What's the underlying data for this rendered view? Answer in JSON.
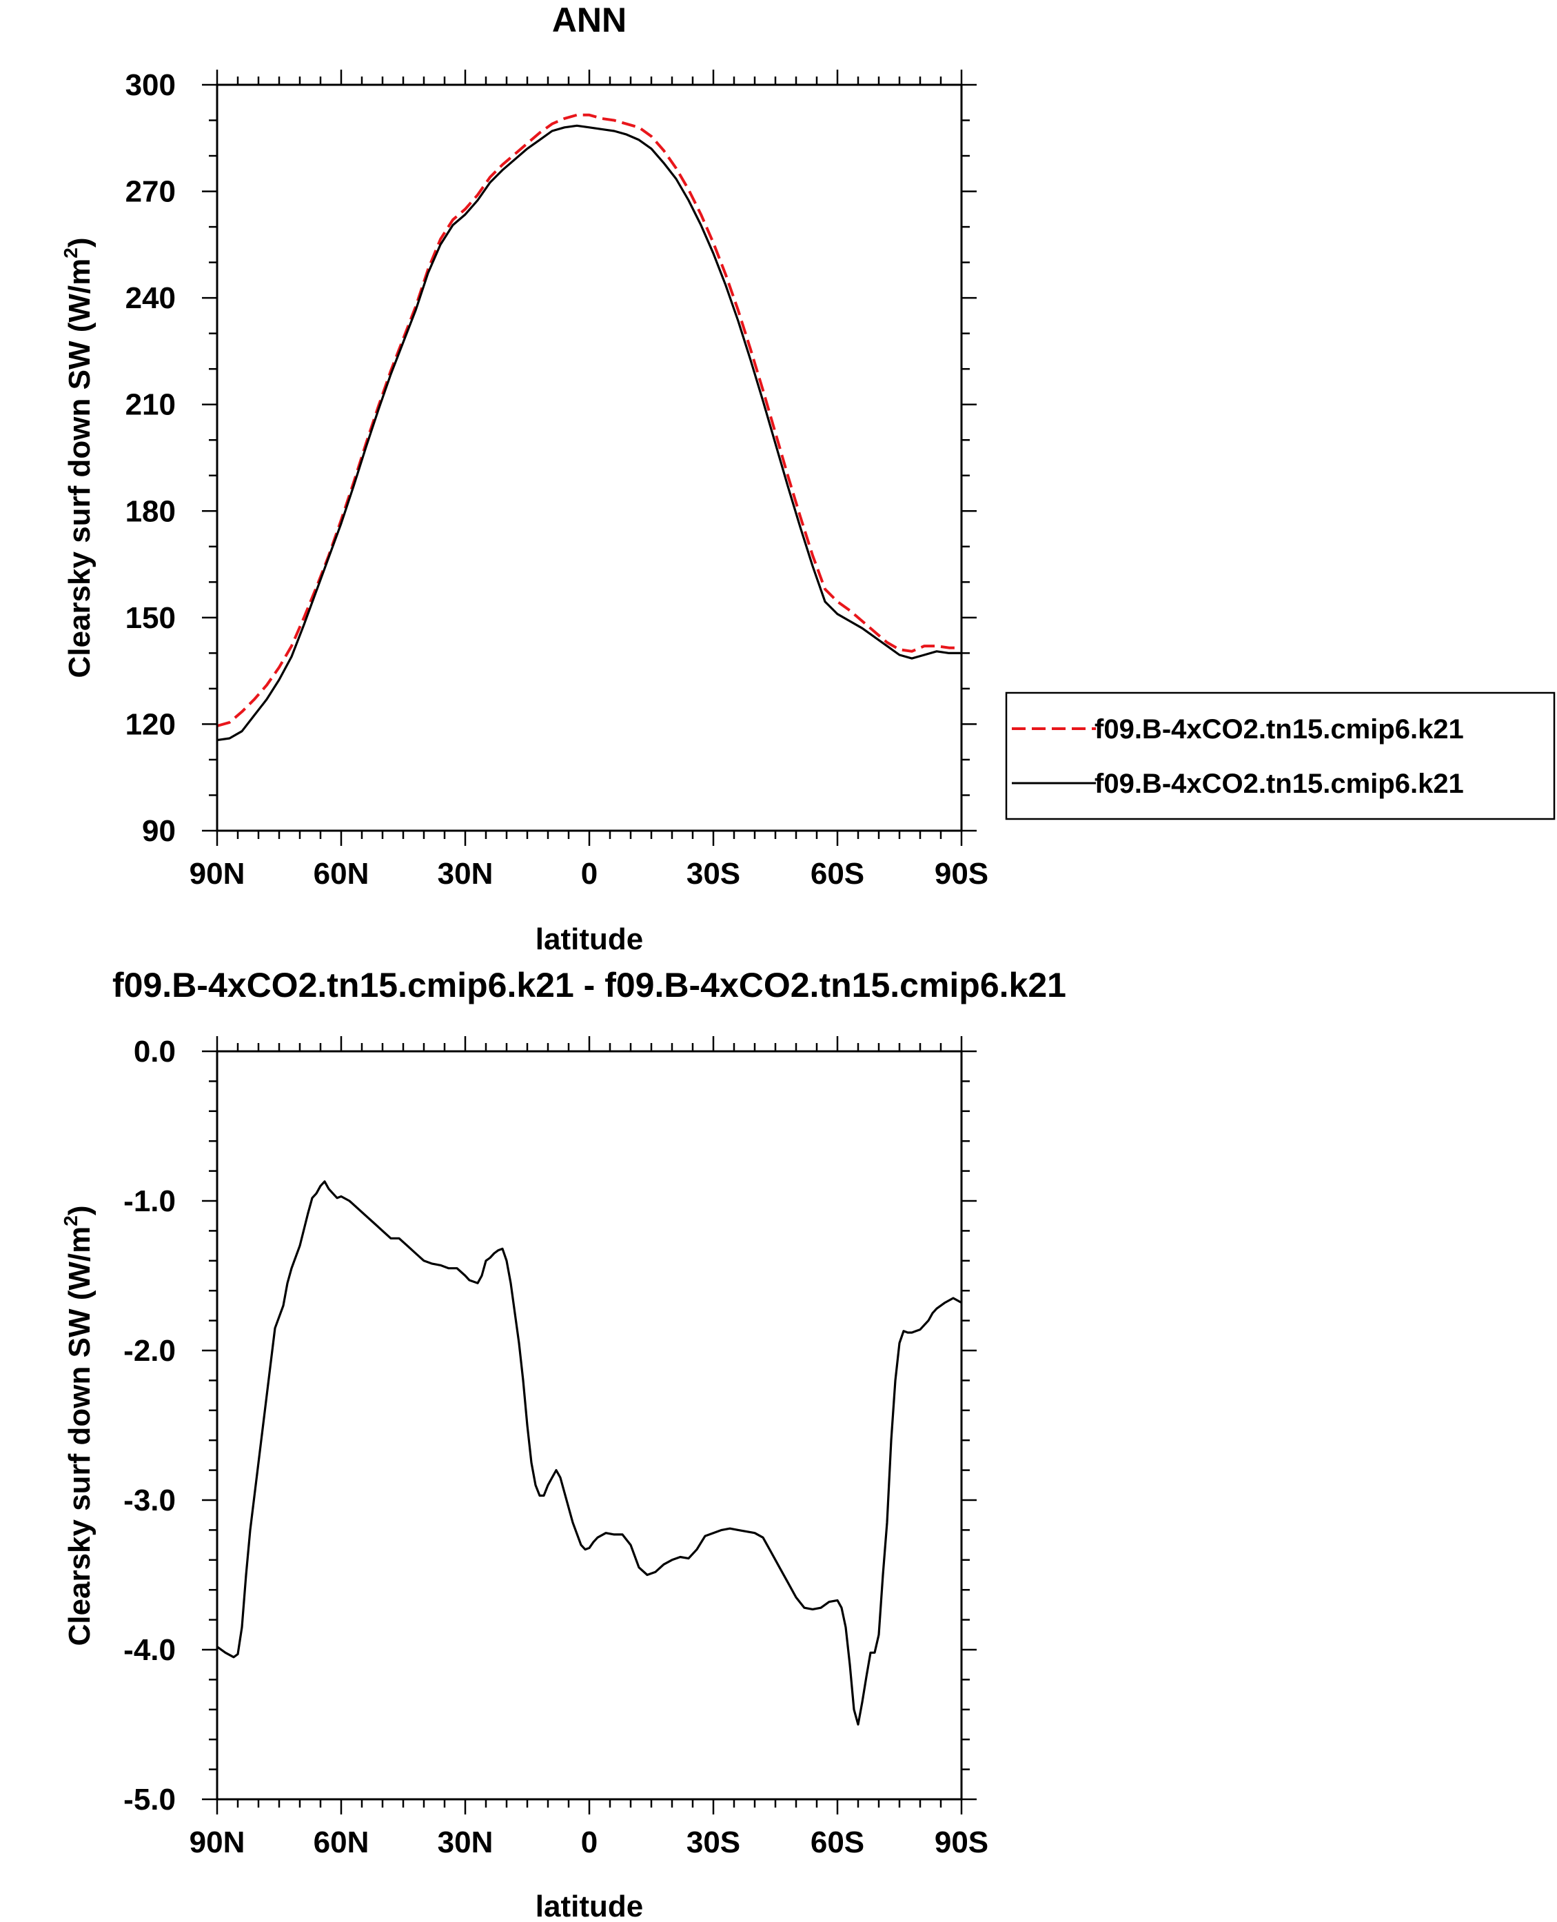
{
  "chart_data": [
    {
      "type": "line",
      "title": "ANN",
      "xlabel": "latitude",
      "ylabel": "Clearsky surf down SW (W/m",
      "ylabel_sup": "2",
      "ylabel_close": ")",
      "xlim": [
        90,
        -90
      ],
      "ylim": [
        90,
        300
      ],
      "x_ticks": [
        90,
        60,
        30,
        0,
        -30,
        -60,
        -90
      ],
      "x_tick_labels": [
        "90N",
        "60N",
        "30N",
        "0",
        "30S",
        "60S",
        "90S"
      ],
      "y_ticks": [
        90,
        120,
        150,
        180,
        210,
        240,
        270,
        300
      ],
      "y_tick_labels": [
        "90",
        "120",
        "150",
        "180",
        "210",
        "240",
        "270",
        "300"
      ],
      "grid": false,
      "legend_position": "right",
      "series": [
        {
          "name": "f09.B-4xCO2.tn15.cmip6.k21",
          "color": "#e8161b",
          "dash": "dashed",
          "x": [
            90,
            87,
            84,
            81,
            78,
            75,
            72,
            69,
            66,
            63,
            60,
            57,
            54,
            51,
            48,
            45,
            42,
            39,
            36,
            33,
            30,
            27,
            24,
            21,
            18,
            15,
            12,
            9,
            6,
            3,
            0,
            -3,
            -6,
            -9,
            -12,
            -15,
            -18,
            -21,
            -24,
            -27,
            -30,
            -33,
            -36,
            -39,
            -42,
            -45,
            -48,
            -51,
            -54,
            -57,
            -60,
            -63,
            -66,
            -69,
            -72,
            -75,
            -78,
            -81,
            -84,
            -87,
            -90
          ],
          "y": [
            119.5,
            120.5,
            123.5,
            127,
            131,
            136,
            142,
            150,
            158.5,
            167.5,
            177.5,
            188,
            199,
            209.5,
            219.5,
            228.5,
            237.5,
            248,
            256.5,
            262,
            265,
            269,
            274,
            277.5,
            280.5,
            283.5,
            286.5,
            289,
            290.5,
            291.5,
            291.5,
            290.5,
            290,
            289,
            288,
            285.5,
            281.5,
            276.5,
            270.5,
            263.5,
            255.5,
            246.5,
            236.5,
            225.5,
            214,
            202,
            190,
            178.5,
            167.5,
            158,
            154.5,
            152,
            149,
            146,
            143,
            141,
            140.5,
            142,
            142,
            141.5,
            141.5
          ]
        },
        {
          "name": "f09.B-4xCO2.tn15.cmip6.k21",
          "color": "#000000",
          "dash": "solid",
          "x": [
            90,
            87,
            84,
            81,
            78,
            75,
            72,
            69,
            66,
            63,
            60,
            57,
            54,
            51,
            48,
            45,
            42,
            39,
            36,
            33,
            30,
            27,
            24,
            21,
            18,
            15,
            12,
            9,
            6,
            3,
            0,
            -3,
            -6,
            -9,
            -12,
            -15,
            -18,
            -21,
            -24,
            -27,
            -30,
            -33,
            -36,
            -39,
            -42,
            -45,
            -48,
            -51,
            -54,
            -57,
            -60,
            -63,
            -66,
            -69,
            -72,
            -75,
            -78,
            -81,
            -84,
            -87,
            -90
          ],
          "y": [
            115.5,
            116,
            118,
            122.5,
            127,
            132.5,
            139,
            148,
            157.5,
            167,
            176.5,
            187,
            198,
            208.5,
            218.5,
            227.5,
            236.5,
            247,
            255,
            260.5,
            263.5,
            267.5,
            272.5,
            276,
            279,
            282,
            284.5,
            287,
            288,
            288.5,
            288,
            287.5,
            287,
            286,
            284.5,
            282,
            278,
            273.5,
            267.5,
            260.5,
            252.5,
            243.5,
            233.5,
            222.5,
            211,
            199,
            187,
            175.5,
            164.5,
            154.5,
            151,
            149,
            147,
            144.5,
            142,
            139.5,
            138.5,
            139.5,
            140.5,
            140,
            140
          ]
        }
      ]
    },
    {
      "type": "line",
      "title": "f09.B-4xCO2.tn15.cmip6.k21 - f09.B-4xCO2.tn15.cmip6.k21",
      "xlabel": "latitude",
      "ylabel": "Clearsky surf down SW (W/m",
      "ylabel_sup": "2",
      "ylabel_close": ")",
      "xlim": [
        90,
        -90
      ],
      "ylim": [
        -5,
        0
      ],
      "x_ticks": [
        90,
        60,
        30,
        0,
        -30,
        -60,
        -90
      ],
      "x_tick_labels": [
        "90N",
        "60N",
        "30N",
        "0",
        "30S",
        "60S",
        "90S"
      ],
      "y_ticks": [
        -5,
        -4,
        -3,
        -2,
        -1,
        0
      ],
      "y_tick_labels": [
        "-5.0",
        "-4.0",
        "-3.0",
        "-2.0",
        "-1.0",
        "0.0"
      ],
      "grid": false,
      "series": [
        {
          "color": "#000000",
          "dash": "solid",
          "x": [
            90,
            88,
            86,
            85,
            84,
            83,
            82,
            80,
            78,
            76,
            74,
            73,
            72,
            70,
            68,
            67,
            66,
            65,
            64,
            63,
            62,
            61,
            60,
            58,
            56,
            54,
            52,
            50,
            48,
            46,
            44,
            42,
            40,
            38,
            36,
            34,
            32,
            30,
            29,
            27,
            26,
            25,
            24,
            23,
            22,
            21,
            20,
            19,
            18,
            17,
            16,
            15,
            14,
            13,
            12,
            11,
            10,
            9,
            8,
            7,
            6,
            4,
            2,
            1,
            0,
            -1,
            -2,
            -4,
            -6,
            -8,
            -10,
            -12,
            -14,
            -16,
            -18,
            -20,
            -22,
            -24,
            -26,
            -28,
            -30,
            -32,
            -34,
            -36,
            -38,
            -40,
            -42,
            -44,
            -46,
            -48,
            -50,
            -52,
            -54,
            -56,
            -58,
            -60,
            -61,
            -62,
            -63,
            -64,
            -65,
            -66,
            -67,
            -68,
            -69,
            -70,
            -71,
            -72,
            -73,
            -74,
            -75,
            -76,
            -77,
            -78,
            -79,
            -80,
            -81,
            -82,
            -83,
            -84,
            -86,
            -88,
            -90
          ],
          "y": [
            -3.98,
            -4.02,
            -4.05,
            -4.03,
            -3.85,
            -3.5,
            -3.2,
            -2.75,
            -2.3,
            -1.85,
            -1.7,
            -1.55,
            -1.45,
            -1.3,
            -1.08,
            -0.98,
            -0.95,
            -0.9,
            -0.87,
            -0.92,
            -0.95,
            -0.98,
            -0.97,
            -1.0,
            -1.05,
            -1.1,
            -1.15,
            -1.2,
            -1.25,
            -1.25,
            -1.3,
            -1.35,
            -1.4,
            -1.42,
            -1.43,
            -1.45,
            -1.45,
            -1.5,
            -1.53,
            -1.55,
            -1.5,
            -1.4,
            -1.38,
            -1.35,
            -1.33,
            -1.32,
            -1.4,
            -1.55,
            -1.75,
            -1.95,
            -2.2,
            -2.5,
            -2.75,
            -2.9,
            -2.97,
            -2.97,
            -2.9,
            -2.85,
            -2.8,
            -2.85,
            -2.95,
            -3.15,
            -3.3,
            -3.33,
            -3.32,
            -3.28,
            -3.25,
            -3.22,
            -3.23,
            -3.23,
            -3.3,
            -3.45,
            -3.5,
            -3.48,
            -3.43,
            -3.4,
            -3.38,
            -3.39,
            -3.33,
            -3.24,
            -3.22,
            -3.2,
            -3.19,
            -3.2,
            -3.21,
            -3.22,
            -3.25,
            -3.35,
            -3.45,
            -3.55,
            -3.65,
            -3.72,
            -3.73,
            -3.72,
            -3.68,
            -3.67,
            -3.72,
            -3.85,
            -4.1,
            -4.4,
            -4.5,
            -4.35,
            -4.18,
            -4.02,
            -4.02,
            -3.9,
            -3.5,
            -3.15,
            -2.6,
            -2.2,
            -1.95,
            -1.87,
            -1.88,
            -1.88,
            -1.87,
            -1.86,
            -1.83,
            -1.8,
            -1.75,
            -1.72,
            -1.68,
            -1.65,
            -1.68
          ]
        }
      ]
    }
  ]
}
